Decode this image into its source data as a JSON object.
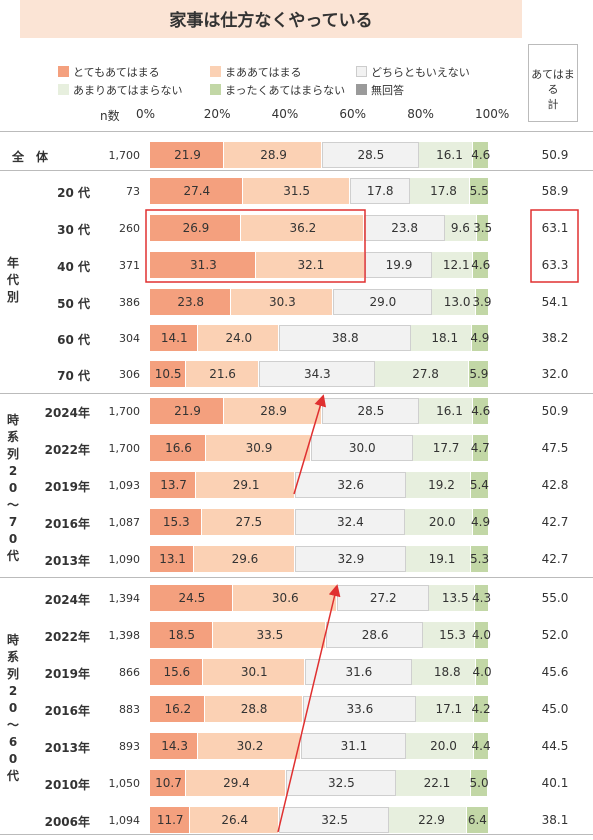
{
  "title": "家事は仕方なくやっている",
  "legend": [
    {
      "label": "とてもあてはまる",
      "color": "#f4a07e"
    },
    {
      "label": "まああてはまる",
      "color": "#fbd1b4"
    },
    {
      "label": "どちらともいえない",
      "color": "#f2f2f2"
    },
    {
      "label": "あまりあてはまらない",
      "color": "#e7efde"
    },
    {
      "label": "まったくあてはまらない",
      "color": "#c2d7a6"
    },
    {
      "label": "無回答",
      "color": "#9a9a9a"
    }
  ],
  "sum_header": [
    "あてはまる",
    "計"
  ],
  "n_label": "n数",
  "axis_ticks": [
    "0%",
    "20%",
    "40%",
    "60%",
    "80%",
    "100%"
  ],
  "group_labels": {
    "age": "年代別",
    "ts_20_70": "時系列20～70代",
    "ts_20_60": "時系列20～60代"
  },
  "chart_data": {
    "type": "bar",
    "stacked": "horizontal-100%",
    "xlim": [
      0,
      100
    ],
    "series": [
      "とてもあてはまる",
      "まああてはまる",
      "どちらともいえない",
      "あまりあてはまらない",
      "まったくあてはまらない",
      "無回答"
    ],
    "rows": [
      {
        "label": "全　体",
        "n": "1,700",
        "values": [
          21.9,
          28.9,
          28.5,
          16.1,
          4.6
        ],
        "sum": "50.9"
      },
      {
        "label": "20 代",
        "n": "73",
        "values": [
          27.4,
          31.5,
          17.8,
          17.8,
          5.5
        ],
        "sum": "58.9"
      },
      {
        "label": "30 代",
        "n": "260",
        "values": [
          26.9,
          36.2,
          23.8,
          9.6,
          3.5
        ],
        "sum": "63.1"
      },
      {
        "label": "40 代",
        "n": "371",
        "values": [
          31.3,
          32.1,
          19.9,
          12.1,
          4.6
        ],
        "sum": "63.3"
      },
      {
        "label": "50 代",
        "n": "386",
        "values": [
          23.8,
          30.3,
          29.0,
          13.0,
          3.9
        ],
        "sum": "54.1"
      },
      {
        "label": "60 代",
        "n": "304",
        "values": [
          14.1,
          24.0,
          38.8,
          18.1,
          4.9
        ],
        "sum": "38.2"
      },
      {
        "label": "70 代",
        "n": "306",
        "values": [
          10.5,
          21.6,
          34.3,
          27.8,
          5.9
        ],
        "sum": "32.0"
      },
      {
        "label": "2024年",
        "n": "1,700",
        "values": [
          21.9,
          28.9,
          28.5,
          16.1,
          4.6
        ],
        "sum": "50.9"
      },
      {
        "label": "2022年",
        "n": "1,700",
        "values": [
          16.6,
          30.9,
          30.0,
          17.7,
          4.7
        ],
        "sum": "47.5"
      },
      {
        "label": "2019年",
        "n": "1,093",
        "values": [
          13.7,
          29.1,
          32.6,
          19.2,
          5.4
        ],
        "sum": "42.8"
      },
      {
        "label": "2016年",
        "n": "1,087",
        "values": [
          15.3,
          27.5,
          32.4,
          20.0,
          4.9
        ],
        "sum": "42.7"
      },
      {
        "label": "2013年",
        "n": "1,090",
        "values": [
          13.1,
          29.6,
          32.9,
          19.1,
          5.3
        ],
        "sum": "42.7"
      },
      {
        "label": "2024年",
        "n": "1,394",
        "values": [
          24.5,
          30.6,
          27.2,
          13.5,
          4.3
        ],
        "sum": "55.0"
      },
      {
        "label": "2022年",
        "n": "1,398",
        "values": [
          18.5,
          33.5,
          28.6,
          15.3,
          4.0
        ],
        "sum": "52.0"
      },
      {
        "label": "2019年",
        "n": "866",
        "values": [
          15.6,
          30.1,
          31.6,
          18.8,
          4.0
        ],
        "sum": "45.6"
      },
      {
        "label": "2016年",
        "n": "883",
        "values": [
          16.2,
          28.8,
          33.6,
          17.1,
          4.2
        ],
        "sum": "45.0"
      },
      {
        "label": "2013年",
        "n": "893",
        "values": [
          14.3,
          30.2,
          31.1,
          20.0,
          4.4
        ],
        "sum": "44.5"
      },
      {
        "label": "2010年",
        "n": "1,050",
        "values": [
          10.7,
          29.4,
          32.5,
          22.1,
          5.0
        ],
        "sum": "40.1"
      },
      {
        "label": "2006年",
        "n": "1,094",
        "values": [
          11.7,
          26.4,
          32.5,
          22.9,
          6.4
        ],
        "sum": "38.1"
      }
    ]
  }
}
